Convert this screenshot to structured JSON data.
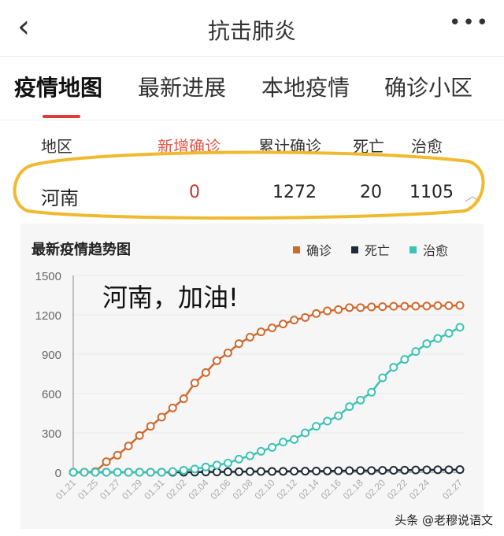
{
  "header": {
    "title": "抗击肺炎",
    "back_icon": "chevron-left-icon",
    "more_icon": "more-horizontal-icon"
  },
  "tabs": [
    {
      "label": "疫情地图",
      "active": true
    },
    {
      "label": "最新进展"
    },
    {
      "label": "本地疫情"
    },
    {
      "label": "确诊小区"
    }
  ],
  "table": {
    "headers": [
      "地区",
      "新增确诊",
      "累计确诊",
      "死亡",
      "治愈"
    ],
    "row": {
      "region": "河南",
      "new": "0",
      "total": "1272",
      "deaths": "20",
      "cured": "1105"
    },
    "expand_icon": "chevron-up-icon"
  },
  "colors": {
    "accent": "#e03a3a",
    "confirmed": "#d0692f",
    "deaths": "#1d2b3a",
    "cured": "#3cc3b5",
    "highlight": "#f0b92e"
  },
  "watermark": "头条 @老穆说语文",
  "chart_data": {
    "type": "line",
    "title": "最新疫情趋势图",
    "annotation": "河南，加油!",
    "legend": "top-right",
    "ylim": [
      0,
      1500
    ],
    "yticks": [
      0,
      300,
      600,
      900,
      1200,
      1500
    ],
    "xtick_labels": [
      "01.21",
      "01.25",
      "01.27",
      "01.29",
      "01.31",
      "02.02",
      "02.04",
      "02.06",
      "02.08",
      "02.10",
      "02.12",
      "02.14",
      "02.16",
      "02.18",
      "02.20",
      "02.22",
      "02.24",
      "02.27"
    ],
    "point_count": 36,
    "grid": true,
    "series": [
      {
        "name": "确诊",
        "values": [
          0,
          0,
          5,
          80,
          130,
          200,
          280,
          350,
          420,
          490,
          560,
          680,
          760,
          850,
          910,
          980,
          1030,
          1070,
          1100,
          1130,
          1160,
          1180,
          1210,
          1230,
          1240,
          1255,
          1255,
          1260,
          1262,
          1265,
          1265,
          1266,
          1267,
          1270,
          1270,
          1272
        ]
      },
      {
        "name": "死亡",
        "values": [
          0,
          0,
          0,
          0,
          0,
          0,
          0,
          0,
          0,
          0,
          0,
          1,
          2,
          2,
          3,
          4,
          5,
          6,
          6,
          7,
          8,
          8,
          9,
          10,
          11,
          12,
          13,
          13,
          14,
          15,
          16,
          17,
          18,
          19,
          19,
          20
        ]
      },
      {
        "name": "治愈",
        "values": [
          0,
          0,
          0,
          0,
          0,
          0,
          0,
          0,
          0,
          5,
          15,
          25,
          40,
          55,
          70,
          100,
          125,
          160,
          190,
          230,
          250,
          300,
          350,
          390,
          430,
          500,
          550,
          610,
          720,
          800,
          860,
          920,
          980,
          1020,
          1060,
          1105
        ]
      }
    ]
  }
}
